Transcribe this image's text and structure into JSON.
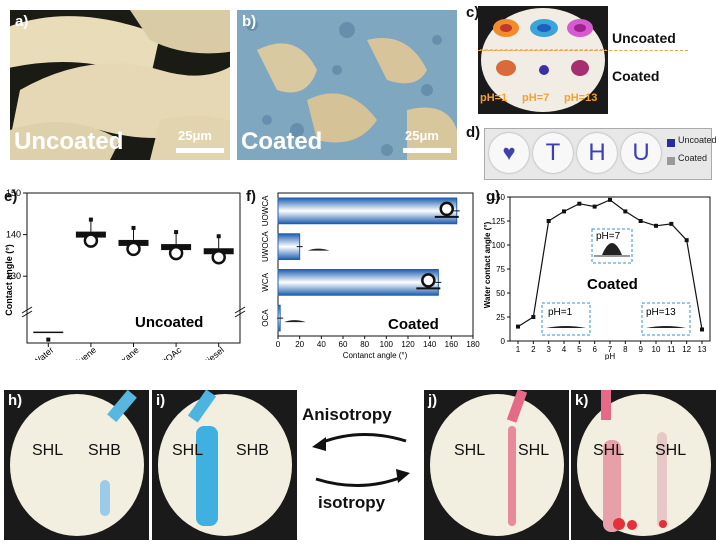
{
  "panels": {
    "a": {
      "label": "a)",
      "caption": "Uncoated",
      "scale": "25μm"
    },
    "b": {
      "label": "b)",
      "caption": "Coated",
      "scale": "25μm"
    },
    "c": {
      "label": "c)",
      "uncoated": "Uncoated",
      "coated": "Coated",
      "ph_labels": [
        "pH=1",
        "pH=7",
        "pH=13"
      ]
    },
    "d": {
      "label": "d)",
      "letters": [
        "T",
        "H",
        "U"
      ],
      "legend": [
        "Uncoated",
        "Coated"
      ]
    },
    "e": {
      "label": "e)"
    },
    "f": {
      "label": "f)"
    },
    "g": {
      "label": "g)",
      "caption": "Coated",
      "insets": [
        "pH=7",
        "pH=1",
        "pH=13"
      ]
    },
    "h": {
      "label": "h)",
      "left": "SHL",
      "right": "SHB"
    },
    "i": {
      "label": "i)",
      "left": "SHL",
      "right": "SHB"
    },
    "j": {
      "label": "j)",
      "left": "SHL",
      "right": "SHL"
    },
    "k": {
      "label": "k)",
      "left": "SHL",
      "right": "SHL"
    },
    "arrows": {
      "top": "Anisotropy",
      "bottom": "isotropy"
    }
  },
  "colors": {
    "blue_bar": "#2f6fc8",
    "ink": "#111111",
    "paper": "#f2eedd"
  },
  "chart_data": [
    {
      "id": "e",
      "type": "scatter",
      "ylabel": "Contact angle (°)",
      "categories": [
        "Water",
        "Toluene",
        "N-hexane",
        "EtOAc",
        "Diesel"
      ],
      "values": [
        3,
        140,
        138,
        137,
        136
      ],
      "ylim": [
        0,
        150
      ],
      "yticks": [
        130,
        140,
        150
      ],
      "y_axis_break": true,
      "caption": "Uncoated"
    },
    {
      "id": "f",
      "type": "bar",
      "orientation": "horizontal",
      "xlabel": "Contanct angle (°)",
      "categories": [
        "UOWCA",
        "UWOCA",
        "WCA",
        "OCA"
      ],
      "values": [
        165,
        20,
        148,
        2
      ],
      "xlim": [
        0,
        180
      ],
      "xticks": [
        0,
        20,
        40,
        60,
        80,
        100,
        120,
        140,
        160,
        180
      ],
      "caption": "Coated"
    },
    {
      "id": "g",
      "type": "line",
      "xlabel": "pH",
      "ylabel": "Water contact angle (°)",
      "x": [
        1,
        2,
        3,
        4,
        5,
        6,
        7,
        8,
        9,
        10,
        11,
        12,
        13
      ],
      "y": [
        15,
        25,
        125,
        135,
        143,
        140,
        147,
        135,
        125,
        120,
        122,
        105,
        12
      ],
      "xlim": [
        1,
        13
      ],
      "ylim": [
        0,
        150
      ],
      "yticks": [
        0,
        25,
        50,
        75,
        100,
        125,
        150
      ]
    }
  ]
}
